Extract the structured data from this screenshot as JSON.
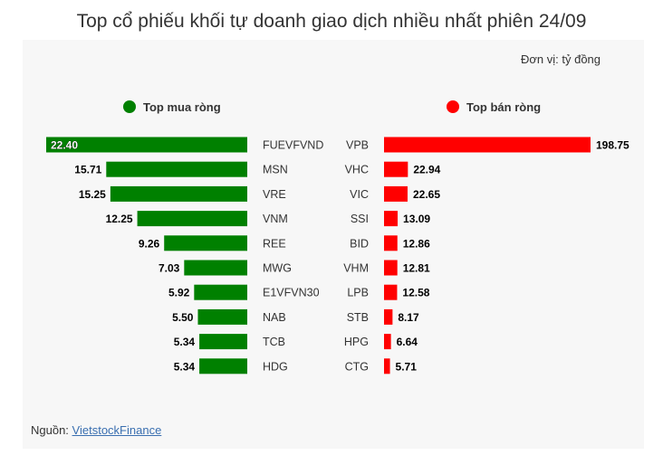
{
  "title": "Top cổ phiếu khối tự doanh giao dịch nhiều nhất phiên 24/09",
  "unit": "Đơn vị: tỷ đồng",
  "legend": {
    "buy": "Top mua ròng",
    "sell": "Top bán ròng"
  },
  "source": {
    "label": "Nguồn:",
    "link": "VietstockFinance"
  },
  "colors": {
    "buy": "#008000",
    "sell": "#ff0000"
  },
  "chart_data": [
    {
      "type": "bar",
      "orientation": "horizontal",
      "direction": "right-to-left",
      "series": [
        {
          "name": "Top mua ròng",
          "categories": [
            "FUEVFVND",
            "MSN",
            "VRE",
            "VNM",
            "REE",
            "MWG",
            "E1VFVN30",
            "NAB",
            "TCB",
            "HDG"
          ],
          "values": [
            22.4,
            15.71,
            15.25,
            12.25,
            9.26,
            7.03,
            5.92,
            5.5,
            5.34,
            5.34
          ]
        }
      ]
    },
    {
      "type": "bar",
      "orientation": "horizontal",
      "direction": "left-to-right",
      "series": [
        {
          "name": "Top bán ròng",
          "categories": [
            "VPB",
            "VHC",
            "VIC",
            "SSI",
            "BID",
            "VHM",
            "LPB",
            "STB",
            "HPG",
            "CTG"
          ],
          "values": [
            198.75,
            22.94,
            22.65,
            13.09,
            12.86,
            12.81,
            12.58,
            8.17,
            6.64,
            5.71
          ]
        }
      ]
    }
  ]
}
